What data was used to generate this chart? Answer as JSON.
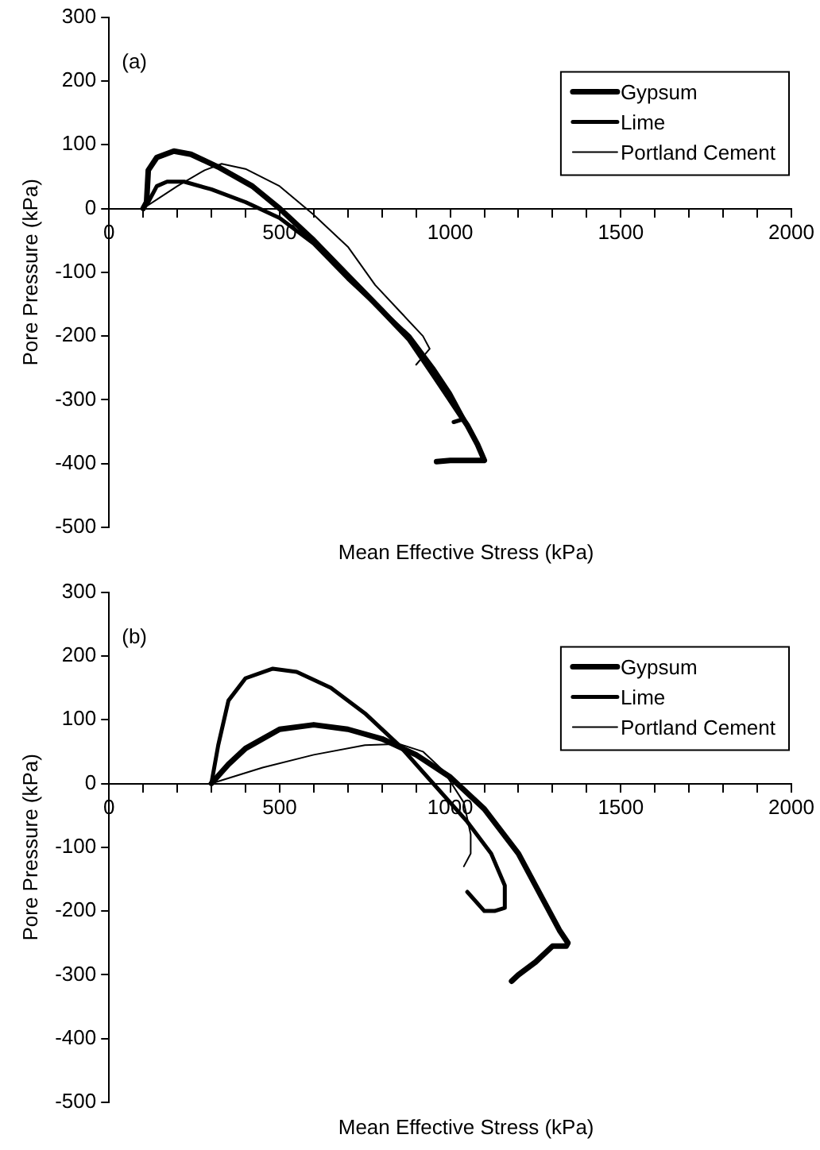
{
  "chart_data": [
    {
      "type": "line",
      "xlabel": "Mean Effective Stress (kPa)",
      "ylabel": "Pore Pressure (kPa)",
      "annotations": [
        "(a)"
      ],
      "legend": "top right",
      "grid": false,
      "marker": "none",
      "line_style": "solid",
      "xlim": [
        0,
        2000
      ],
      "ylim": [
        -500,
        300
      ],
      "xticks": [
        0,
        {
          "value": 100,
          "label": null
        },
        {
          "value": 200,
          "label": null
        },
        {
          "value": 300,
          "label": null
        },
        {
          "value": 400,
          "label": null
        },
        500,
        {
          "value": 600,
          "label": null
        },
        {
          "value": 700,
          "label": null
        },
        {
          "value": 800,
          "label": null
        },
        {
          "value": 900,
          "label": null
        },
        1000,
        {
          "value": 1100,
          "label": null
        },
        {
          "value": 1200,
          "label": null
        },
        {
          "value": 1300,
          "label": null
        },
        {
          "value": 1400,
          "label": null
        },
        1500,
        {
          "value": 1600,
          "label": null
        },
        {
          "value": 1700,
          "label": null
        },
        {
          "value": 1800,
          "label": null
        },
        {
          "value": 1900,
          "label": null
        },
        2000
      ],
      "yticks": [
        -500,
        -400,
        -300,
        -200,
        -100,
        0,
        100,
        200,
        300
      ],
      "series": [
        {
          "name": "Gypsum",
          "color": "#000000",
          "x": [
            100,
            110,
            115,
            140,
            190,
            240,
            320,
            420,
            500,
            600,
            700,
            800,
            880,
            950,
            1000,
            1050,
            1080,
            1100,
            1050,
            1000,
            960
          ],
          "values": [
            0,
            10,
            60,
            80,
            90,
            85,
            65,
            35,
            0,
            -50,
            -105,
            -160,
            -205,
            -260,
            -300,
            -340,
            -370,
            -395,
            -395,
            -395,
            -397
          ]
        },
        {
          "name": "Lime",
          "color": "#000000",
          "x": [
            100,
            115,
            140,
            170,
            220,
            300,
            400,
            500,
            600,
            700,
            800,
            880,
            950,
            1000,
            1040,
            1010
          ],
          "values": [
            0,
            10,
            35,
            42,
            42,
            30,
            10,
            -15,
            -55,
            -110,
            -160,
            -200,
            -250,
            -290,
            -330,
            -335
          ]
        },
        {
          "name": "Portland Cement",
          "color": "#000000",
          "x": [
            100,
            200,
            280,
            330,
            400,
            500,
            600,
            700,
            780,
            850,
            920,
            940,
            900
          ],
          "values": [
            0,
            35,
            60,
            70,
            62,
            35,
            -10,
            -60,
            -120,
            -160,
            -200,
            -220,
            -245
          ]
        }
      ]
    },
    {
      "type": "line",
      "xlabel": "Mean Effective Stress (kPa)",
      "ylabel": "Pore Pressure (kPa)",
      "annotations": [
        "(b)"
      ],
      "legend": "top right",
      "grid": false,
      "marker": "none",
      "line_style": "solid",
      "xlim": [
        0,
        2000
      ],
      "ylim": [
        -500,
        300
      ],
      "xticks": [
        0,
        {
          "value": 100,
          "label": null
        },
        {
          "value": 200,
          "label": null
        },
        {
          "value": 300,
          "label": null
        },
        {
          "value": 400,
          "label": null
        },
        500,
        {
          "value": 600,
          "label": null
        },
        {
          "value": 700,
          "label": null
        },
        {
          "value": 800,
          "label": null
        },
        {
          "value": 900,
          "label": null
        },
        1000,
        {
          "value": 1100,
          "label": null
        },
        {
          "value": 1200,
          "label": null
        },
        {
          "value": 1300,
          "label": null
        },
        {
          "value": 1400,
          "label": null
        },
        1500,
        {
          "value": 1600,
          "label": null
        },
        {
          "value": 1700,
          "label": null
        },
        {
          "value": 1800,
          "label": null
        },
        {
          "value": 1900,
          "label": null
        },
        2000
      ],
      "yticks": [
        -500,
        -400,
        -300,
        -200,
        -100,
        0,
        100,
        200,
        300
      ],
      "series": [
        {
          "name": "Gypsum",
          "color": "#000000",
          "x": [
            300,
            350,
            400,
            500,
            600,
            700,
            800,
            900,
            1000,
            1100,
            1200,
            1270,
            1320,
            1345,
            1340,
            1300,
            1250,
            1200,
            1180
          ],
          "values": [
            0,
            30,
            55,
            85,
            92,
            85,
            70,
            45,
            10,
            -40,
            -110,
            -180,
            -230,
            -250,
            -255,
            -255,
            -280,
            -300,
            -310
          ]
        },
        {
          "name": "Lime",
          "color": "#000000",
          "x": [
            300,
            320,
            350,
            400,
            480,
            550,
            650,
            750,
            850,
            950,
            1050,
            1120,
            1160,
            1160,
            1130,
            1100,
            1050
          ],
          "values": [
            0,
            60,
            130,
            165,
            180,
            175,
            150,
            110,
            60,
            0,
            -60,
            -110,
            -160,
            -195,
            -200,
            -200,
            -170
          ]
        },
        {
          "name": "Portland Cement",
          "color": "#000000",
          "x": [
            300,
            450,
            600,
            750,
            850,
            920,
            980,
            1040,
            1060,
            1060,
            1040
          ],
          "values": [
            0,
            25,
            45,
            60,
            62,
            50,
            20,
            -30,
            -80,
            -110,
            -130
          ]
        }
      ]
    }
  ]
}
